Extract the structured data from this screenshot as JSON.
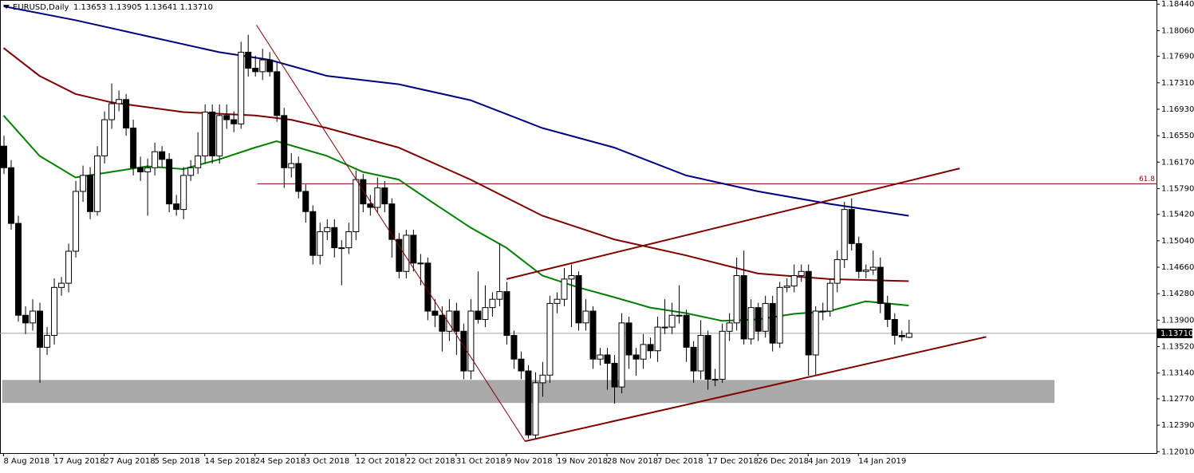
{
  "chart_data": {
    "type": "candlestick",
    "title": "EURUSD,Daily",
    "subtitle": "1.13653 1.13905 1.13641 1.13710",
    "categories": [
      "8 Aug 2018",
      null,
      null,
      null,
      null,
      null,
      null,
      "17 Aug 2018",
      null,
      null,
      null,
      null,
      null,
      null,
      "27 Aug 2018",
      null,
      null,
      null,
      null,
      null,
      null,
      "5 Sep 2018",
      null,
      null,
      null,
      null,
      null,
      null,
      "14 Sep 2018",
      null,
      null,
      null,
      null,
      null,
      null,
      "24 Sep 2018",
      null,
      null,
      null,
      null,
      null,
      null,
      "3 Oct 2018",
      null,
      null,
      null,
      null,
      null,
      null,
      "12 Oct 2018",
      null,
      null,
      null,
      null,
      null,
      null,
      "22 Oct 2018",
      null,
      null,
      null,
      null,
      null,
      null,
      "31 Oct 2018",
      null,
      null,
      null,
      null,
      null,
      null,
      "9 Nov 2018",
      null,
      null,
      null,
      null,
      null,
      null,
      "19 Nov 2018",
      null,
      null,
      null,
      null,
      null,
      null,
      "28 Nov 2018",
      null,
      null,
      null,
      null,
      null,
      null,
      "7 Dec 2018",
      null,
      null,
      null,
      null,
      null,
      null,
      "17 Dec 2018",
      null,
      null,
      null,
      null,
      null,
      null,
      "26 Dec 2018",
      null,
      null,
      null,
      null,
      null,
      null,
      "4 Jan 2019",
      null,
      null,
      null,
      null,
      null,
      null,
      "14 Jan 2019",
      null,
      null,
      null,
      null,
      null,
      null,
      null
    ],
    "ohlc": [
      [
        1.164,
        1.1655,
        1.16,
        1.1609
      ],
      [
        1.1609,
        1.162,
        1.152,
        1.1529
      ],
      [
        1.1529,
        1.154,
        1.1388,
        1.1397
      ],
      [
        1.1397,
        1.141,
        1.137,
        1.1386
      ],
      [
        1.1386,
        1.142,
        1.1375,
        1.1403
      ],
      [
        1.1403,
        1.1415,
        1.13,
        1.1351
      ],
      [
        1.1351,
        1.138,
        1.134,
        1.1368
      ],
      [
        1.1368,
        1.145,
        1.1355,
        1.1437
      ],
      [
        1.1437,
        1.1452,
        1.1425,
        1.1443
      ],
      [
        1.1443,
        1.15,
        1.143,
        1.1489
      ],
      [
        1.1489,
        1.159,
        1.148,
        1.1575
      ],
      [
        1.1575,
        1.1612,
        1.156,
        1.1598
      ],
      [
        1.1598,
        1.161,
        1.1535,
        1.1546
      ],
      [
        1.1546,
        1.164,
        1.154,
        1.1626
      ],
      [
        1.1626,
        1.169,
        1.1615,
        1.1678
      ],
      [
        1.1678,
        1.173,
        1.1665,
        1.1701
      ],
      [
        1.1701,
        1.172,
        1.169,
        1.1707
      ],
      [
        1.1707,
        1.1715,
        1.1655,
        1.1666
      ],
      [
        1.1666,
        1.1678,
        1.1598,
        1.1609
      ],
      [
        1.1609,
        1.1625,
        1.159,
        1.1603
      ],
      [
        1.1603,
        1.1622,
        1.154,
        1.1609
      ],
      [
        1.1609,
        1.1645,
        1.1598,
        1.1632
      ],
      [
        1.1632,
        1.164,
        1.161,
        1.1621
      ],
      [
        1.1621,
        1.163,
        1.1545,
        1.1557
      ],
      [
        1.1557,
        1.157,
        1.154,
        1.1549
      ],
      [
        1.1549,
        1.161,
        1.1535,
        1.1598
      ],
      [
        1.1598,
        1.162,
        1.159,
        1.1609
      ],
      [
        1.1609,
        1.166,
        1.16,
        1.1626
      ],
      [
        1.1626,
        1.17,
        1.1615,
        1.1689
      ],
      [
        1.1689,
        1.17,
        1.1615,
        1.1626
      ],
      [
        1.1626,
        1.17,
        1.1615,
        1.1684
      ],
      [
        1.1684,
        1.17,
        1.1665,
        1.1678
      ],
      [
        1.1678,
        1.169,
        1.166,
        1.1672
      ],
      [
        1.1672,
        1.179,
        1.1665,
        1.1775
      ],
      [
        1.1775,
        1.18,
        1.174,
        1.1752
      ],
      [
        1.1752,
        1.177,
        1.174,
        1.1747
      ],
      [
        1.1747,
        1.178,
        1.1735,
        1.1764
      ],
      [
        1.1764,
        1.1775,
        1.174,
        1.1747
      ],
      [
        1.1747,
        1.176,
        1.1675,
        1.1684
      ],
      [
        1.1684,
        1.1695,
        1.158,
        1.1609
      ],
      [
        1.1609,
        1.163,
        1.1595,
        1.1615
      ],
      [
        1.1615,
        1.1625,
        1.1565,
        1.1575
      ],
      [
        1.1575,
        1.1585,
        1.153,
        1.1546
      ],
      [
        1.1546,
        1.1555,
        1.147,
        1.1483
      ],
      [
        1.1483,
        1.153,
        1.147,
        1.1517
      ],
      [
        1.1517,
        1.1535,
        1.1505,
        1.1523
      ],
      [
        1.1523,
        1.1535,
        1.148,
        1.1494
      ],
      [
        1.1494,
        1.1505,
        1.144,
        1.1494
      ],
      [
        1.1494,
        1.153,
        1.1485,
        1.1517
      ],
      [
        1.1517,
        1.1605,
        1.1505,
        1.1592
      ],
      [
        1.1592,
        1.16,
        1.1545,
        1.1557
      ],
      [
        1.1557,
        1.157,
        1.154,
        1.1552
      ],
      [
        1.1552,
        1.1595,
        1.1545,
        1.158
      ],
      [
        1.158,
        1.159,
        1.1545,
        1.1557
      ],
      [
        1.1557,
        1.1565,
        1.148,
        1.1506
      ],
      [
        1.1506,
        1.1515,
        1.145,
        1.146
      ],
      [
        1.146,
        1.152,
        1.145,
        1.1512
      ],
      [
        1.1512,
        1.152,
        1.146,
        1.1472
      ],
      [
        1.1472,
        1.1485,
        1.144,
        1.1472
      ],
      [
        1.1472,
        1.148,
        1.139,
        1.1403
      ],
      [
        1.1403,
        1.142,
        1.138,
        1.1397
      ],
      [
        1.1397,
        1.141,
        1.1345,
        1.1374
      ],
      [
        1.1374,
        1.142,
        1.136,
        1.1403
      ],
      [
        1.1403,
        1.1415,
        1.134,
        1.1374
      ],
      [
        1.1374,
        1.1385,
        1.1305,
        1.1317
      ],
      [
        1.1317,
        1.142,
        1.1305,
        1.1403
      ],
      [
        1.1403,
        1.146,
        1.1385,
        1.1391
      ],
      [
        1.1391,
        1.144,
        1.138,
        1.1408
      ],
      [
        1.1408,
        1.143,
        1.1395,
        1.142
      ],
      [
        1.142,
        1.15,
        1.141,
        1.1431
      ],
      [
        1.1431,
        1.1445,
        1.1355,
        1.1368
      ],
      [
        1.1368,
        1.1375,
        1.132,
        1.1334
      ],
      [
        1.1334,
        1.1345,
        1.1305,
        1.1317
      ],
      [
        1.1317,
        1.1325,
        1.122,
        1.1225
      ],
      [
        1.1225,
        1.1315,
        1.122,
        1.13
      ],
      [
        1.13,
        1.133,
        1.128,
        1.1311
      ],
      [
        1.1311,
        1.1425,
        1.13,
        1.1414
      ],
      [
        1.1414,
        1.143,
        1.14,
        1.142
      ],
      [
        1.142,
        1.1465,
        1.141,
        1.1449
      ],
      [
        1.1449,
        1.147,
        1.138,
        1.1454
      ],
      [
        1.1454,
        1.146,
        1.1375,
        1.1386
      ],
      [
        1.1386,
        1.142,
        1.1375,
        1.1403
      ],
      [
        1.1403,
        1.141,
        1.132,
        1.1334
      ],
      [
        1.1334,
        1.135,
        1.1325,
        1.134
      ],
      [
        1.134,
        1.135,
        1.129,
        1.1328
      ],
      [
        1.1328,
        1.134,
        1.127,
        1.1294
      ],
      [
        1.1294,
        1.14,
        1.1285,
        1.1386
      ],
      [
        1.1386,
        1.1395,
        1.132,
        1.134
      ],
      [
        1.134,
        1.135,
        1.131,
        1.1334
      ],
      [
        1.1334,
        1.137,
        1.132,
        1.1355
      ],
      [
        1.1355,
        1.1365,
        1.1335,
        1.1346
      ],
      [
        1.1346,
        1.1395,
        1.133,
        1.138
      ],
      [
        1.138,
        1.142,
        1.137,
        1.138
      ],
      [
        1.138,
        1.1415,
        1.137,
        1.1397
      ],
      [
        1.1397,
        1.144,
        1.1385,
        1.1397
      ],
      [
        1.1397,
        1.1405,
        1.133,
        1.1351
      ],
      [
        1.1351,
        1.136,
        1.13,
        1.1317
      ],
      [
        1.1317,
        1.139,
        1.1305,
        1.1368
      ],
      [
        1.1368,
        1.1375,
        1.129,
        1.1305
      ],
      [
        1.1305,
        1.132,
        1.1295,
        1.1305
      ],
      [
        1.1305,
        1.1385,
        1.13,
        1.1374
      ],
      [
        1.1374,
        1.14,
        1.136,
        1.1386
      ],
      [
        1.1386,
        1.148,
        1.1375,
        1.1454
      ],
      [
        1.1454,
        1.149,
        1.1355,
        1.1363
      ],
      [
        1.1363,
        1.142,
        1.1355,
        1.1408
      ],
      [
        1.1408,
        1.1415,
        1.136,
        1.1374
      ],
      [
        1.1374,
        1.1425,
        1.1365,
        1.1414
      ],
      [
        1.1414,
        1.1425,
        1.1345,
        1.1357
      ],
      [
        1.1357,
        1.1445,
        1.135,
        1.1437
      ],
      [
        1.1437,
        1.145,
        1.143,
        1.1439
      ],
      [
        1.1439,
        1.147,
        1.143,
        1.1454
      ],
      [
        1.1454,
        1.147,
        1.1445,
        1.146
      ],
      [
        1.146,
        1.147,
        1.131,
        1.134
      ],
      [
        1.134,
        1.141,
        1.131,
        1.1403
      ],
      [
        1.1403,
        1.1415,
        1.139,
        1.1403
      ],
      [
        1.1403,
        1.145,
        1.1395,
        1.1443
      ],
      [
        1.1443,
        1.149,
        1.143,
        1.1477
      ],
      [
        1.1477,
        1.156,
        1.1465,
        1.1549
      ],
      [
        1.1549,
        1.1565,
        1.149,
        1.15
      ],
      [
        1.15,
        1.151,
        1.145,
        1.146
      ],
      [
        1.146,
        1.147,
        1.145,
        1.1462
      ],
      [
        1.1462,
        1.149,
        1.1455,
        1.1466
      ],
      [
        1.1466,
        1.148,
        1.14,
        1.1414
      ],
      [
        1.1414,
        1.1425,
        1.138,
        1.1391
      ],
      [
        1.1391,
        1.14,
        1.1355,
        1.1368
      ],
      [
        1.1368,
        1.1375,
        1.136,
        1.1366
      ],
      [
        1.13653,
        1.13905,
        1.13641,
        1.1371
      ]
    ],
    "series": [
      {
        "color": "#00007f",
        "x": [
          0,
          10,
          20,
          30,
          37,
          45,
          55,
          65,
          75,
          85,
          95,
          105,
          115,
          126
        ],
        "values": [
          1.1841,
          1.1821,
          1.1798,
          1.1775,
          1.1764,
          1.1741,
          1.1729,
          1.1706,
          1.1666,
          1.1638,
          1.1598,
          1.1575,
          1.1557,
          1.154
        ]
      },
      {
        "color": "#7f0000",
        "x": [
          0,
          5,
          10,
          15,
          25,
          35,
          40,
          45,
          55,
          65,
          75,
          85,
          95,
          105,
          115,
          126
        ],
        "values": [
          1.1781,
          1.1741,
          1.1715,
          1.1703,
          1.1689,
          1.1684,
          1.1678,
          1.1666,
          1.1638,
          1.1592,
          1.154,
          1.1506,
          1.1483,
          1.1457,
          1.1449,
          1.1446
        ]
      },
      {
        "color": "#007f00",
        "x": [
          0,
          5,
          10,
          15,
          20,
          25,
          30,
          35,
          38,
          45,
          50,
          55,
          60,
          65,
          70,
          75,
          80,
          85,
          90,
          95,
          100,
          105,
          110,
          115,
          120,
          126
        ],
        "values": [
          1.1684,
          1.1626,
          1.1595,
          1.1603,
          1.1611,
          1.1607,
          1.1621,
          1.1638,
          1.1647,
          1.1626,
          1.1603,
          1.1592,
          1.1557,
          1.1523,
          1.1494,
          1.1454,
          1.1437,
          1.1423,
          1.1408,
          1.14,
          1.1389,
          1.1391,
          1.1399,
          1.1403,
          1.1417,
          1.1411
        ]
      }
    ],
    "trendlines": [
      {
        "x": [
          35.2,
          72.6
        ],
        "y": [
          1.1814,
          1.1216
        ],
        "color": "#800000",
        "width": 1
      },
      {
        "x": [
          72.6,
          136.8
        ],
        "y": [
          1.1216,
          1.1366
        ],
        "color": "#800000",
        "width": 2
      },
      {
        "x": [
          70,
          133.1
        ],
        "y": [
          1.1449,
          1.1608
        ],
        "color": "#800000",
        "width": 2
      }
    ],
    "zones": [
      {
        "x": [
          -0.2,
          146.3
        ],
        "y": [
          1.1271,
          1.1304
        ],
        "color": "#a9a9a9"
      }
    ],
    "hlines": [
      {
        "value": 1.1586,
        "x_start": 35.3,
        "label": "61.8",
        "color": "#8b0000"
      }
    ],
    "last_price": {
      "value": 1.1371,
      "label": "1.13710"
    },
    "bull_color": "#ffffff",
    "bear_color": "#000000",
    "xlim": [
      -0.5,
      160.5
    ],
    "ylim": [
      1.1199,
      1.185
    ],
    "yticks": [
      {
        "value": 1.1844,
        "label": "1.18440"
      },
      {
        "value": 1.1806,
        "label": "1.18060"
      },
      {
        "value": 1.1769,
        "label": "1.17690"
      },
      {
        "value": 1.1731,
        "label": "1.17310"
      },
      {
        "value": 1.1693,
        "label": "1.16930"
      },
      {
        "value": 1.1655,
        "label": "1.16550"
      },
      {
        "value": 1.1617,
        "label": "1.16170"
      },
      {
        "value": 1.1579,
        "label": "1.15790"
      },
      {
        "value": 1.1542,
        "label": "1.15420"
      },
      {
        "value": 1.1504,
        "label": "1.15040"
      },
      {
        "value": 1.1466,
        "label": "1.14660"
      },
      {
        "value": 1.1428,
        "label": "1.14280"
      },
      {
        "value": 1.139,
        "label": "1.13900"
      },
      {
        "value": 1.1352,
        "label": "1.13520"
      },
      {
        "value": 1.1314,
        "label": "1.13140"
      },
      {
        "value": 1.1277,
        "label": "1.12770"
      },
      {
        "value": 1.1239,
        "label": "1.12390"
      },
      {
        "value": 1.1201,
        "label": "1.12010"
      }
    ]
  }
}
